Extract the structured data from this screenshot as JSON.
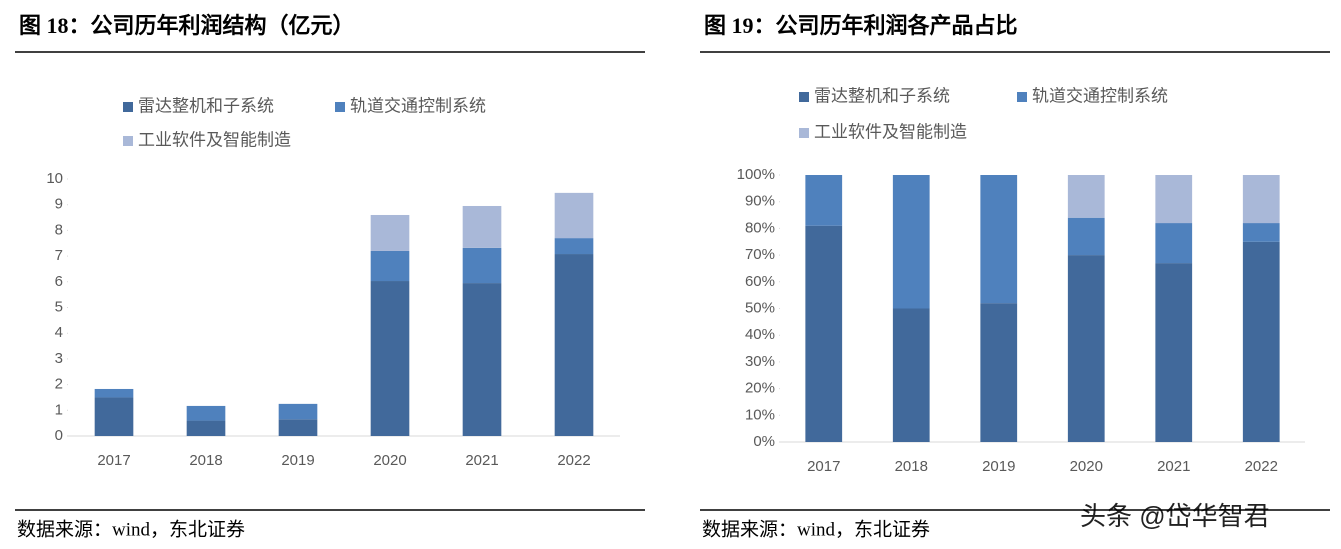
{
  "chart_data": [
    {
      "type": "stacked_bar",
      "title": "图 18：公司历年利润结构（亿元）",
      "categories": [
        "2017",
        "2018",
        "2019",
        "2020",
        "2021",
        "2022"
      ],
      "series": [
        {
          "name": "雷达整机和子系统",
          "color": "#41699b",
          "values": [
            1.5,
            0.6,
            0.65,
            6.03,
            5.95,
            7.08
          ]
        },
        {
          "name": "轨道交通控制系统",
          "color": "#4f81bd",
          "values": [
            0.33,
            0.57,
            0.6,
            1.17,
            1.37,
            0.62
          ]
        },
        {
          "name": "工业软件及智能制造",
          "color": "#a9b8d8",
          "values": [
            0,
            0,
            0,
            1.4,
            1.63,
            1.76
          ]
        }
      ],
      "ylim": [
        0,
        10
      ],
      "yticks": [
        0,
        1,
        2,
        3,
        4,
        5,
        6,
        7,
        8,
        9,
        10
      ],
      "source": "数据来源：wind，东北证券"
    },
    {
      "type": "stacked_bar",
      "title": "图 19：公司历年利润各产品占比",
      "categories": [
        "2017",
        "2018",
        "2019",
        "2020",
        "2021",
        "2022"
      ],
      "series": [
        {
          "name": "雷达整机和子系统",
          "color": "#41699b",
          "values": [
            81,
            50,
            52,
            70,
            67,
            75
          ]
        },
        {
          "name": "轨道交通控制系统",
          "color": "#4f81bd",
          "values": [
            19,
            50,
            48,
            14,
            15,
            7
          ]
        },
        {
          "name": "工业软件及智能制造",
          "color": "#a9b8d8",
          "values": [
            0,
            0,
            0,
            16,
            18,
            18
          ]
        }
      ],
      "ylim": [
        0,
        100
      ],
      "yticks": [
        {
          "value": 0,
          "label": "0%"
        },
        {
          "value": 10,
          "label": "10%"
        },
        {
          "value": 20,
          "label": "20%"
        },
        {
          "value": 30,
          "label": "30%"
        },
        {
          "value": 40,
          "label": "40%"
        },
        {
          "value": 50,
          "label": "50%"
        },
        {
          "value": 60,
          "label": "60%"
        },
        {
          "value": 70,
          "label": "70%"
        },
        {
          "value": 80,
          "label": "80%"
        },
        {
          "value": 90,
          "label": "90%"
        },
        {
          "value": 100,
          "label": "100%"
        }
      ],
      "source": "数据来源：wind，东北证券"
    }
  ],
  "watermark": "头条 @岱华智君"
}
